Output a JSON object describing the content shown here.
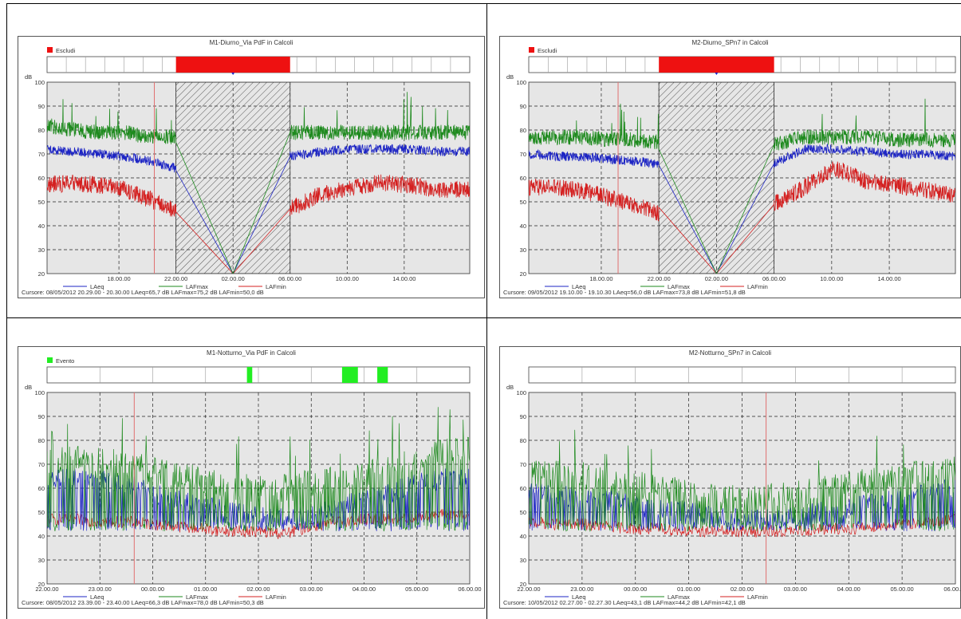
{
  "layout_grid": "2x2",
  "colors": {
    "laeq": "#1c24c4",
    "lafmax": "#1e8a1e",
    "lafmin": "#d42020",
    "exclude": "#ee1111",
    "event": "#22ee22",
    "plot_bg": "#e6e6e6",
    "cursor": "#e07070"
  },
  "chart_data": [
    {
      "type": "line",
      "title": "M1-Diurno_Via PdF in Calcoli",
      "ylabel": "dB",
      "ylim": [
        20,
        100
      ],
      "yticks": [
        "20",
        "30",
        "40",
        "50",
        "60",
        "70",
        "80",
        "90",
        "100"
      ],
      "xticks": [
        "18.00.00",
        "22.00.00",
        "02.00.00",
        "06.00.00",
        "10.00.00",
        "14.00.00"
      ],
      "marker_legend": {
        "label": "Escludi",
        "color": "#ee1111"
      },
      "excluded_period": [
        "22.00.00",
        "06.00.00"
      ],
      "cursor_time": "20.29.00",
      "legend": [
        "LAeq",
        "LAFmax",
        "LAFmin"
      ],
      "series": [
        {
          "name": "LAeq",
          "approx_level_before": 70,
          "approx_level_after": 71,
          "trend_before": [
            72,
            71,
            70,
            69,
            67,
            64
          ],
          "trend_after": [
            69,
            71,
            72,
            72,
            72,
            71,
            71
          ]
        },
        {
          "name": "LAFmax",
          "approx_level_before": 80,
          "approx_level_after": 79,
          "trend_before": [
            82,
            80,
            79,
            79,
            77,
            77
          ],
          "trend_after": [
            79,
            79,
            79,
            79,
            79,
            79,
            79
          ]
        },
        {
          "name": "LAFmin",
          "approx_level_before": 56,
          "approx_level_after": 56,
          "trend_before": [
            57,
            58,
            57,
            55,
            51,
            46
          ],
          "trend_after": [
            47,
            53,
            56,
            58,
            57,
            55,
            55
          ]
        }
      ],
      "cursor_readout": "Cursore: 08/05/2012 20.29.00 - 20.30.00  LAeq=65,7 dB  LAFmax=75,2 dB  LAFmin=50,0 dB"
    },
    {
      "type": "line",
      "title": "M2-Diurno_SPn7 in Calcoli",
      "ylabel": "dB",
      "ylim": [
        20,
        100
      ],
      "yticks": [
        "20",
        "30",
        "40",
        "50",
        "60",
        "70",
        "80",
        "90",
        "100"
      ],
      "xticks": [
        "18.00.00",
        "22.00.00",
        "02.00.00",
        "06.00.00",
        "10.00.00",
        "14.00.00"
      ],
      "marker_legend": {
        "label": "Escludi",
        "color": "#ee1111"
      },
      "excluded_period": [
        "22.00.00",
        "06.00.00"
      ],
      "cursor_time": "19.10.00",
      "legend": [
        "LAeq",
        "LAFmax",
        "LAFmin"
      ],
      "series": [
        {
          "name": "LAeq",
          "approx_level_before": 70,
          "approx_level_after": 70,
          "trend_before": [
            70,
            69,
            69,
            68,
            67,
            66
          ],
          "trend_after": [
            66,
            72,
            72,
            71,
            70,
            70,
            69
          ]
        },
        {
          "name": "LAFmax",
          "approx_level_before": 76,
          "approx_level_after": 76,
          "trend_before": [
            77,
            77,
            77,
            76,
            76,
            75
          ],
          "trend_after": [
            74,
            77,
            77,
            77,
            76,
            76,
            76
          ]
        },
        {
          "name": "LAFmin",
          "approx_level_before": 54,
          "approx_level_after": 56,
          "trend_before": [
            56,
            56,
            55,
            52,
            49,
            45
          ],
          "trend_after": [
            49,
            56,
            64,
            59,
            57,
            55,
            53
          ]
        }
      ],
      "cursor_readout": "Cursore: 09/05/2012 19.10.00 - 19.10.30  LAeq=56,0 dB  LAFmax=73,8 dB  LAFmin=51,8 dB"
    },
    {
      "type": "line",
      "title": "M1-Notturno_Via PdF in Calcoli",
      "ylabel": "dB",
      "ylim": [
        20,
        100
      ],
      "yticks": [
        "20",
        "30",
        "40",
        "50",
        "60",
        "70",
        "80",
        "90",
        "100"
      ],
      "xticks": [
        "22.00.00",
        "23.00.00",
        "00.00.00",
        "01.00.00",
        "02.00.00",
        "03.00.00",
        "04.00.00",
        "05.00.00",
        "06.00.00"
      ],
      "marker_legend": {
        "label": "Evento",
        "color": "#22ee22"
      },
      "event_periods": [
        [
          "01.47.00",
          "01.53.00"
        ],
        [
          "03.35.00",
          "03.53.00"
        ],
        [
          "04.15.00",
          "04.27.00"
        ]
      ],
      "cursor_time": "23.39.00",
      "legend": [
        "LAeq",
        "LAFmax",
        "LAFmin"
      ],
      "series": [
        {
          "name": "LAeq",
          "trend": [
            64,
            64,
            63,
            62,
            58,
            55,
            52,
            50,
            48,
            47,
            49,
            52,
            55,
            58,
            62,
            64,
            64
          ]
        },
        {
          "name": "LAFmax",
          "trend": [
            72,
            72,
            71,
            70,
            67,
            65,
            63,
            61,
            60,
            60,
            62,
            64,
            66,
            68,
            72,
            75,
            76
          ]
        },
        {
          "name": "LAFmin",
          "trend": [
            47,
            47,
            46,
            46,
            45,
            44,
            43,
            42,
            42,
            41,
            44,
            46,
            47,
            47,
            48,
            49,
            48
          ]
        }
      ],
      "cursor_readout": "Cursore: 08/05/2012 23.39.00 - 23.40.00  LAeq=66,3 dB  LAFmax=78,0 dB  LAFmin=50,3 dB"
    },
    {
      "type": "line",
      "title": "M2-Notturno_SPn7 in Calcoli",
      "ylabel": "dB",
      "ylim": [
        20,
        100
      ],
      "yticks": [
        "20",
        "30",
        "40",
        "50",
        "60",
        "70",
        "80",
        "90",
        "100"
      ],
      "xticks": [
        "22.00.00",
        "23.00.00",
        "00.00.00",
        "01.00.00",
        "02.00.00",
        "03.00.00",
        "04.00.00",
        "05.00.00",
        "06.00.00"
      ],
      "cursor_time": "02.27.00",
      "legend": [
        "LAeq",
        "LAFmax",
        "LAFmin"
      ],
      "series": [
        {
          "name": "LAeq",
          "trend": [
            58,
            57,
            56,
            55,
            53,
            51,
            50,
            48,
            47,
            47,
            48,
            50,
            52,
            54,
            56,
            58,
            60
          ]
        },
        {
          "name": "LAFmax",
          "trend": [
            66,
            66,
            65,
            63,
            61,
            60,
            58,
            56,
            55,
            56,
            57,
            59,
            61,
            63,
            65,
            66,
            68
          ]
        },
        {
          "name": "LAFmin",
          "trend": [
            46,
            45,
            45,
            44,
            43,
            43,
            42,
            42,
            42,
            42,
            42,
            43,
            43,
            44,
            45,
            46,
            47
          ]
        }
      ],
      "cursor_readout": "Cursore: 10/05/2012 02.27.00 - 02.27.30  LAeq=43,1 dB  LAFmax=44,2 dB  LAFmin=42,1 dB"
    }
  ]
}
